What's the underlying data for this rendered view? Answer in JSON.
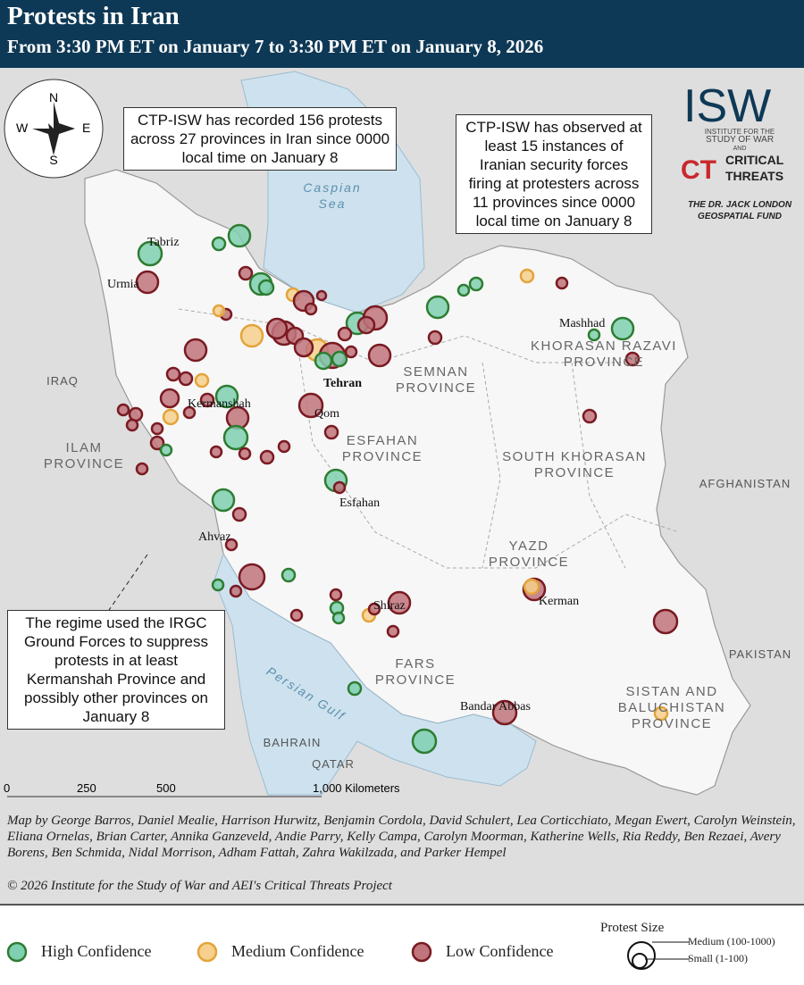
{
  "header": {
    "title": "Protests in Iran",
    "subtitle": "From 3:30 PM ET on January 7 to 3:30 PM ET on January 8, 2026"
  },
  "compass": {
    "n": "N",
    "e": "E",
    "s": "S",
    "w": "W"
  },
  "callouts": [
    "CTP-ISW has recorded 156 protests across 27 provinces in Iran since 0000 local time on January 8",
    "CTP-ISW has observed at least 15 instances of Iranian security forces firing at protesters across 11 provinces since 0000 local time on January 8",
    "The regime used the IRGC Ground Forces to suppress protests in at least Kermanshah Province and possibly other provinces on January 8"
  ],
  "logos": {
    "isw": "ISW",
    "isw_sub1": "INSTITUTE FOR THE",
    "isw_sub2": "STUDY OF WAR",
    "and": "AND",
    "ct": "CT",
    "ct1": "CRITICAL",
    "ct2": "THREATS",
    "fund1": "THE DR. JACK LONDON",
    "fund2": "GEOSPATIAL FUND"
  },
  "cities": [
    "Tabriz",
    "Urmia",
    "Tehran",
    "Kermanshah",
    "Qom",
    "Esfahan",
    "Ahvaz",
    "Shiraz",
    "Kerman",
    "Bandar Abbas",
    "Mashhad"
  ],
  "provinces": [
    [
      "SEMNAN",
      "PROVINCE"
    ],
    [
      "ESFAHAN",
      "PROVINCE"
    ],
    [
      "KHORASAN RAZAVI",
      "PROVINCE"
    ],
    [
      "SOUTH KHORASAN",
      "PROVINCE"
    ],
    [
      "ILAM",
      "PROVINCE"
    ],
    [
      "YAZD",
      "PROVINCE"
    ],
    [
      "FARS",
      "PROVINCE"
    ],
    [
      "SISTAN AND",
      "BALUCHISTAN",
      "PROVINCE"
    ]
  ],
  "countries": [
    "IRAQ",
    "AFGHANISTAN",
    "PAKISTAN",
    "BAHRAIN",
    "QATAR"
  ],
  "seas": [
    [
      "Caspian",
      "Sea"
    ],
    "Persian Gulf"
  ],
  "scale": [
    "0",
    "250",
    "500",
    "1,000 Kilometers"
  ],
  "credits": "Map by George Barros, Daniel Mealie, Harrison Hurwitz, Benjamin Cordola, David Schulert, Lea Corticchiato, Megan Ewert, Carolyn Weinstein, Eliana Ornelas, Brian Carter, Annika Ganzeveld, Andie Parry, Kelly Campa, Carolyn Moorman, Katherine Wells, Ria Reddy, Ben Rezaei, Avery Borens, Ben Schmida, Nidal Morrison, Adham Fattah, Zahra Wakilzada, and Parker Hempel",
  "copyright": "© 2026 Institute for the Study of War and AEI's Critical Threats Project",
  "legend": {
    "high": "High Confidence",
    "medium": "Medium Confidence",
    "low": "Low Confidence",
    "size_title": "Protest Size",
    "size_medium": "Medium (100-1000)",
    "size_small": "Small (1-100)"
  }
}
